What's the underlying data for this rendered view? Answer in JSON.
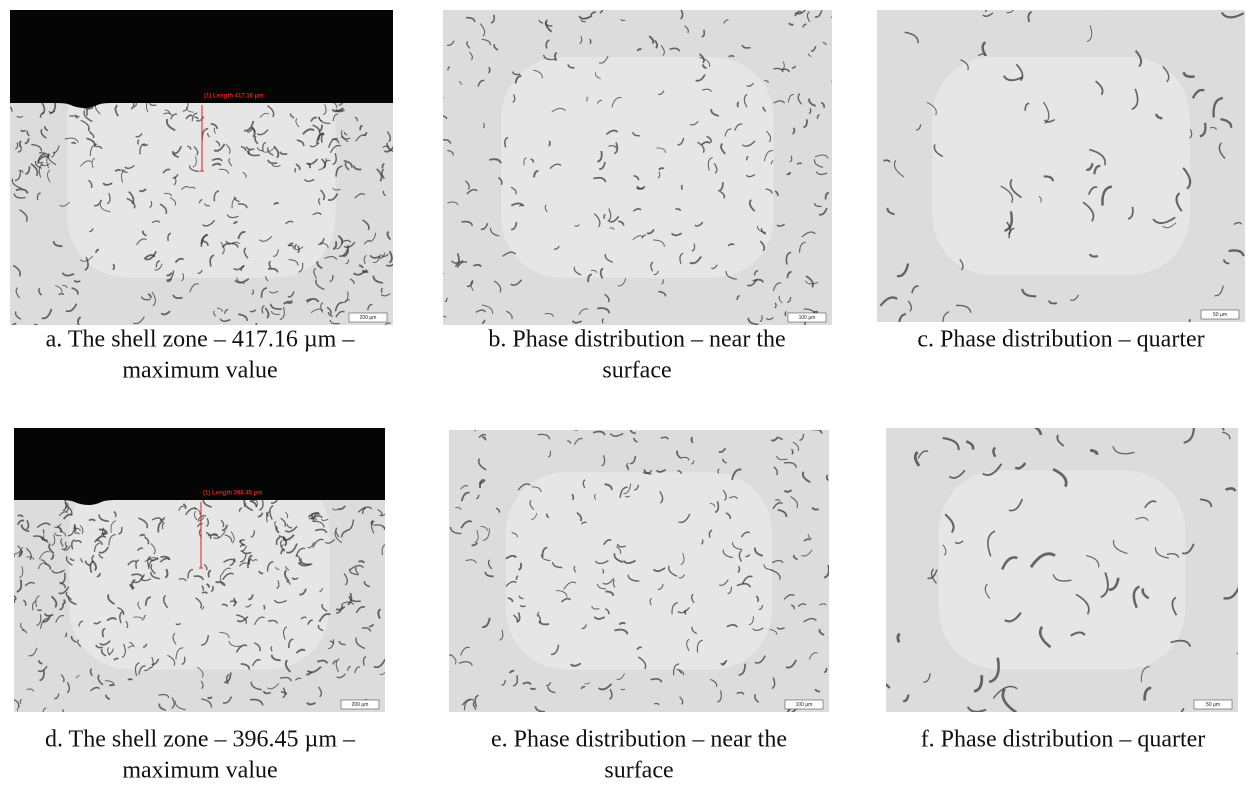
{
  "figure": {
    "panels": [
      {
        "caption": [
          "a. The shell zone – 417.16 µm –",
          "maximum value"
        ],
        "measurement": "(1) Length 417.16 µm",
        "scale_bar": "200 µm"
      },
      {
        "caption": [
          "b. Phase distribution – near the",
          "surface"
        ],
        "scale_bar": "100 µm"
      },
      {
        "caption": [
          "c. Phase distribution – quarter"
        ],
        "scale_bar": "50 µm"
      },
      {
        "caption": [
          "d. The shell zone – 396.45 µm –",
          "maximum value"
        ],
        "measurement": "(1) Length 396.45 µm",
        "scale_bar": "200 µm"
      },
      {
        "caption": [
          "e. Phase distribution – near the",
          "surface"
        ],
        "scale_bar": "100 µm"
      },
      {
        "caption": [
          "f. Phase distribution – quarter"
        ],
        "scale_bar": "50 µm"
      }
    ]
  }
}
